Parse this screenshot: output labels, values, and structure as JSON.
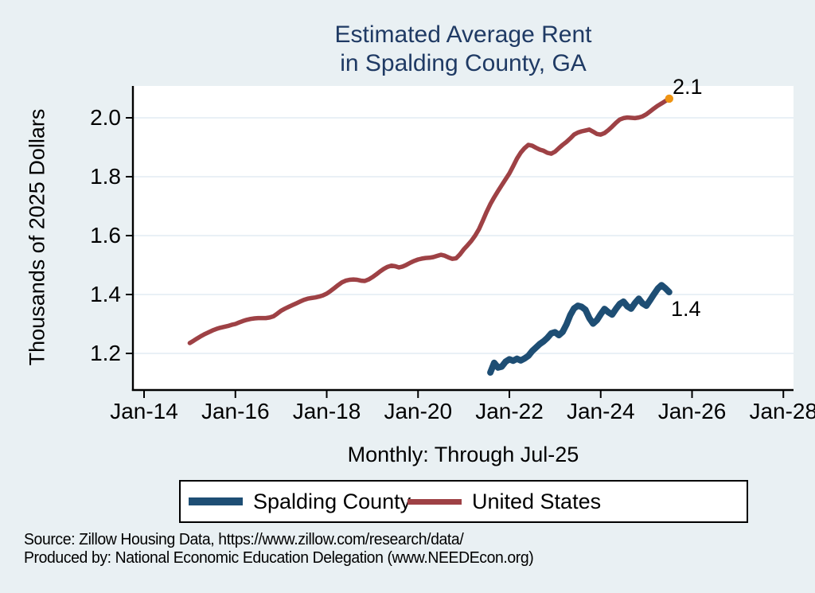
{
  "title": {
    "line1": "Estimated Average Rent",
    "line2": "in Spalding County, GA"
  },
  "subtitle": "Monthly: Through Jul-25",
  "y_axis": {
    "label": "Thousands of 2025 Dollars",
    "tick_labels": [
      "2.0",
      "1.8",
      "1.6",
      "1.4",
      "1.2"
    ],
    "tick_values": [
      2.0,
      1.8,
      1.6,
      1.4,
      1.2
    ]
  },
  "x_axis": {
    "tick_labels": [
      "Jan-14",
      "Jan-16",
      "Jan-18",
      "Jan-20",
      "Jan-22",
      "Jan-24",
      "Jan-26",
      "Jan-28"
    ],
    "tick_values": [
      0,
      2,
      4,
      6,
      8,
      10,
      12,
      14
    ]
  },
  "end_labels": {
    "united_states": "2.1",
    "spalding_county": "1.4"
  },
  "legend": {
    "items": [
      {
        "label": "Spalding County",
        "color": "#1e4e74",
        "swatch_height": 10
      },
      {
        "label": "United States",
        "color": "#9e4145",
        "swatch_height": 7
      }
    ]
  },
  "source": {
    "line1": "Source: Zillow Housing Data, https://www.zillow.com/research/data/",
    "line2": "Produced by: National Economic Education Delegation (www.NEEDEcon.org)"
  },
  "colors": {
    "background": "#e9f0f3",
    "plot_background": "#ffffff",
    "gridline": "#e2ecf3",
    "axis": "#000000",
    "title": "#1f3a64",
    "spalding_line": "#1e4e74",
    "us_line": "#9e4145",
    "end_marker": "#ef9413"
  },
  "chart_data": {
    "type": "line",
    "title": "Estimated Average Rent in Spalding County, GA",
    "subtitle": "Monthly: Through Jul-25",
    "xlabel": "",
    "ylabel": "Thousands of 2025 Dollars",
    "x_unit_note": "x values are years since Jan-2014; monthly frequency",
    "xlim": [
      -0.24,
      14.22
    ],
    "ylim": [
      1.08,
      2.11
    ],
    "grid": true,
    "legend_position": "bottom",
    "series": [
      {
        "name": "United States",
        "color": "#9e4145",
        "line_width": 5.5,
        "start_month": "Jan-2015",
        "end_month": "Jul-2025",
        "x_start": 1.0,
        "x_step": 0.0833333,
        "end_marker_color": "#ef9413",
        "values": [
          1.235,
          1.243,
          1.251,
          1.259,
          1.266,
          1.272,
          1.278,
          1.283,
          1.287,
          1.29,
          1.293,
          1.297,
          1.3,
          1.305,
          1.31,
          1.314,
          1.317,
          1.319,
          1.32,
          1.32,
          1.32,
          1.322,
          1.326,
          1.335,
          1.345,
          1.352,
          1.358,
          1.364,
          1.37,
          1.376,
          1.382,
          1.386,
          1.388,
          1.39,
          1.393,
          1.397,
          1.403,
          1.412,
          1.422,
          1.432,
          1.441,
          1.447,
          1.45,
          1.451,
          1.45,
          1.447,
          1.446,
          1.451,
          1.459,
          1.468,
          1.478,
          1.487,
          1.494,
          1.498,
          1.496,
          1.492,
          1.495,
          1.501,
          1.508,
          1.514,
          1.519,
          1.522,
          1.524,
          1.525,
          1.527,
          1.531,
          1.535,
          1.532,
          1.526,
          1.521,
          1.523,
          1.536,
          1.553,
          1.567,
          1.582,
          1.6,
          1.622,
          1.65,
          1.68,
          1.707,
          1.73,
          1.751,
          1.771,
          1.791,
          1.811,
          1.836,
          1.862,
          1.882,
          1.897,
          1.908,
          1.905,
          1.898,
          1.892,
          1.888,
          1.881,
          1.878,
          1.885,
          1.897,
          1.908,
          1.918,
          1.93,
          1.943,
          1.95,
          1.954,
          1.957,
          1.96,
          1.953,
          1.945,
          1.943,
          1.948,
          1.958,
          1.97,
          1.983,
          1.994,
          1.999,
          2.001,
          2.0,
          1.999,
          2.001,
          2.005,
          2.012,
          2.022,
          2.032,
          2.041,
          2.049,
          2.057,
          2.065
        ]
      },
      {
        "name": "Spalding County",
        "color": "#1e4e74",
        "line_width": 8,
        "start_month": "Aug-2021",
        "end_month": "Jul-2025",
        "x_start": 7.5833333,
        "x_step": 0.0833333,
        "values": [
          1.135,
          1.168,
          1.152,
          1.155,
          1.172,
          1.18,
          1.175,
          1.182,
          1.176,
          1.183,
          1.192,
          1.208,
          1.22,
          1.232,
          1.241,
          1.253,
          1.268,
          1.272,
          1.262,
          1.273,
          1.298,
          1.33,
          1.353,
          1.362,
          1.358,
          1.348,
          1.32,
          1.301,
          1.313,
          1.333,
          1.351,
          1.34,
          1.332,
          1.351,
          1.368,
          1.376,
          1.36,
          1.352,
          1.371,
          1.386,
          1.37,
          1.362,
          1.381,
          1.401,
          1.42,
          1.432,
          1.421,
          1.408
        ]
      }
    ],
    "end_value_labels": {
      "United States": 2.1,
      "Spalding County": 1.4
    }
  }
}
